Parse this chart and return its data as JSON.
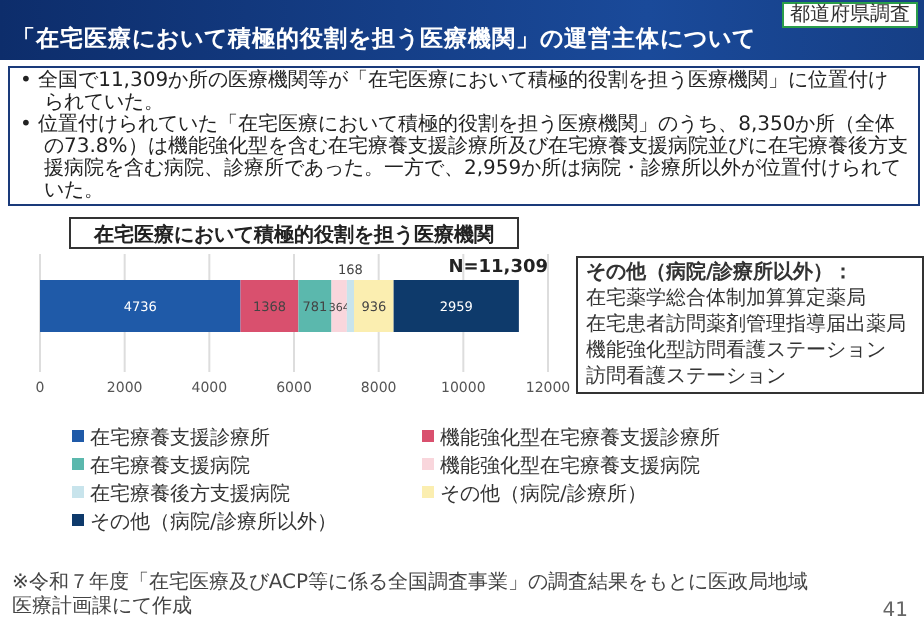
{
  "chart_data": {
    "type": "bar",
    "orientation": "horizontal",
    "stacked": true,
    "title": "「在宅医療において積極的役割を担う医療機関」の運営主体について",
    "subtitle": "在宅医療において積極的役割を担う医療機関",
    "categories": [
      null
    ],
    "series": [
      {
        "name": "在宅療養支援診療所",
        "color": "#1f5aa8",
        "values": [
          4736
        ]
      },
      {
        "name": "機能強化型在宅療養支援診療所",
        "color": "#d9506e",
        "values": [
          1368
        ]
      },
      {
        "name": "在宅療養支援病院",
        "color": "#5bb8ad",
        "values": [
          781
        ]
      },
      {
        "name": "機能強化型在宅療養支援病院",
        "color": "#f9d6dc",
        "values": [
          364
        ]
      },
      {
        "name": "在宅療養後方支援病院",
        "color": "#c8e4ec",
        "values": [
          168
        ]
      },
      {
        "name": "その他（病院/診療所）",
        "color": "#fbeeb0",
        "values": [
          936
        ]
      },
      {
        "name": "その他（病院/診療所以外）",
        "color": "#0e3a6b",
        "values": [
          2959
        ]
      }
    ],
    "xlim": [
      0,
      12000
    ],
    "xticks": [
      0,
      2000,
      4000,
      6000,
      8000,
      10000,
      12000
    ],
    "grid": "x",
    "legend": "bottom",
    "data_labels": true,
    "annotations": [
      "都道府県調査",
      "• 全国で11,309か所の医療機関等が「在宅医療において積極的役割を担う医療機関」に位置付けられていた。",
      "• 位置付けられていた「在宅医療において積極的役割を担う医療機関」のうち、8,350か所（全体の73.8%）は機能強化型を含む在宅療養支援診療所及び在宅療養支援病院並びに在宅療養後方支援病院を含む病院、診療所であった。一方で、2,959か所は病院・診療所以外が位置付けられていた。",
      "N=11,309",
      "その他（病院/診療所以外）：",
      "在宅薬学総合体制加算算定薬局",
      "在宅患者訪問薬剤管理指導届出薬局",
      "機能強化型訪問看護ステーション",
      "訪問看護ステーション",
      "※令和７年度「在宅医療及びACP等に係る全国調査事業」の調査結果をもとに医政局地域医療計画課にて作成",
      "41"
    ]
  }
}
